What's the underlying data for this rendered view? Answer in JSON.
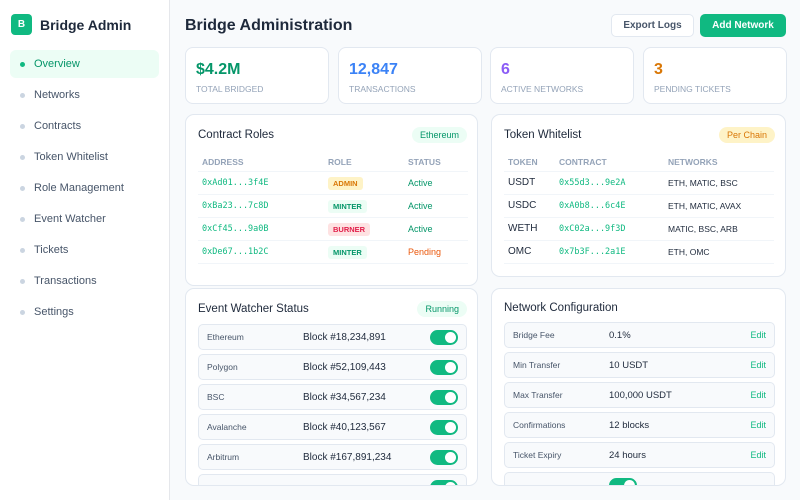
{
  "sidebar": {
    "logo_letter": "B",
    "brand": "Bridge Admin",
    "items": [
      {
        "label": "Overview",
        "active": true
      },
      {
        "label": "Networks"
      },
      {
        "label": "Contracts"
      },
      {
        "label": "Token Whitelist"
      },
      {
        "label": "Role Management"
      },
      {
        "label": "Event Watcher"
      },
      {
        "label": "Tickets"
      },
      {
        "label": "Transactions"
      },
      {
        "label": "Settings"
      }
    ]
  },
  "header": {
    "title": "Bridge Administration",
    "export_label": "Export Logs",
    "add_label": "Add Network"
  },
  "stats": [
    {
      "value": "$4.2M",
      "label": "TOTAL BRIDGED",
      "color": "#059669"
    },
    {
      "value": "12,847",
      "label": "TRANSACTIONS",
      "color": "#3b82f6"
    },
    {
      "value": "6",
      "label": "ACTIVE NETWORKS",
      "color": "#8b5cf6"
    },
    {
      "value": "3",
      "label": "PENDING TICKETS",
      "color": "#d97706"
    }
  ],
  "contract_roles": {
    "title": "Contract Roles",
    "badge": "Ethereum",
    "headers": [
      "ADDRESS",
      "ROLE",
      "STATUS"
    ],
    "rows": [
      {
        "address": "0xAd01...3f4E",
        "role": "ADMIN",
        "status": "Active"
      },
      {
        "address": "0xBa23...7c8D",
        "role": "MINTER",
        "status": "Active"
      },
      {
        "address": "0xCf45...9a0B",
        "role": "BURNER",
        "status": "Active"
      },
      {
        "address": "0xDe67...1b2C",
        "role": "MINTER",
        "status": "Pending"
      }
    ]
  },
  "token_whitelist": {
    "title": "Token Whitelist",
    "badge": "Per Chain",
    "headers": [
      "TOKEN",
      "CONTRACT",
      "NETWORKS"
    ],
    "rows": [
      {
        "token": "USDT",
        "contract": "0x55d3...9e2A",
        "networks": "ETH, MATIC, BSC"
      },
      {
        "token": "USDC",
        "contract": "0xA0b8...6c4E",
        "networks": "ETH, MATIC, AVAX"
      },
      {
        "token": "WETH",
        "contract": "0xC02a...9f3D",
        "networks": "MATIC, BSC, ARB"
      },
      {
        "token": "OMC",
        "contract": "0x7b3F...2a1E",
        "networks": "ETH, OMC"
      }
    ]
  },
  "event_watcher": {
    "title": "Event Watcher Status",
    "badge": "Running",
    "rows": [
      {
        "chain": "Ethereum",
        "block": "Block #18,234,891",
        "enabled": true
      },
      {
        "chain": "Polygon",
        "block": "Block #52,109,443",
        "enabled": true
      },
      {
        "chain": "BSC",
        "block": "Block #34,567,234",
        "enabled": true
      },
      {
        "chain": "Avalanche",
        "block": "Block #40,123,567",
        "enabled": true
      },
      {
        "chain": "Arbitrum",
        "block": "Block #167,891,234",
        "enabled": true
      }
    ]
  },
  "network_config": {
    "title": "Network Configuration",
    "edit_label": "Edit",
    "rows": [
      {
        "label": "Bridge Fee",
        "value": "0.1%"
      },
      {
        "label": "Min Transfer",
        "value": "10 USDT"
      },
      {
        "label": "Max Transfer",
        "value": "100,000 USDT"
      },
      {
        "label": "Confirmations",
        "value": "12 blocks"
      },
      {
        "label": "Ticket Expiry",
        "value": "24 hours"
      }
    ]
  }
}
